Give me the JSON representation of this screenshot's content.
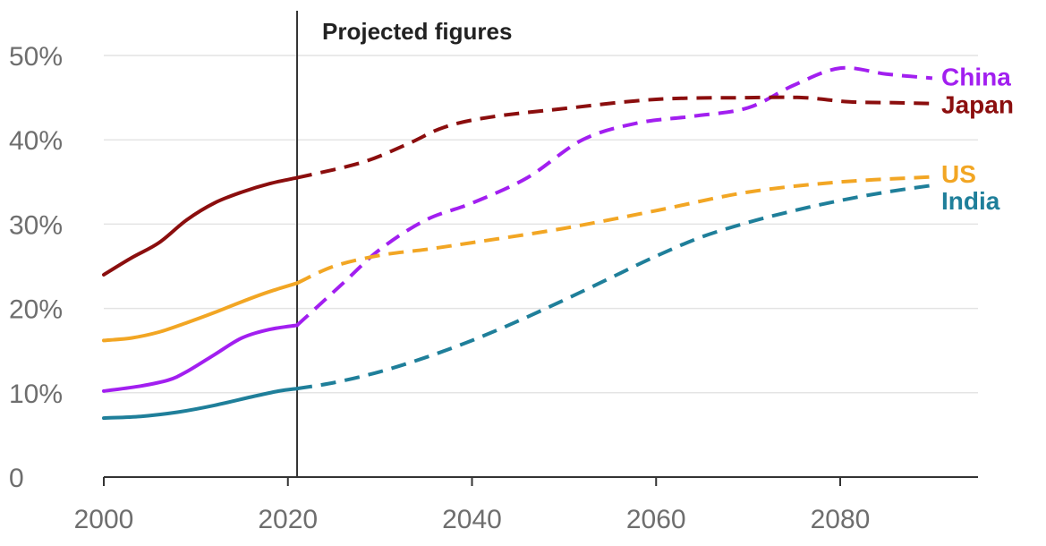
{
  "chart_data": {
    "type": "line",
    "xlim": [
      2000,
      2095
    ],
    "ylim": [
      0,
      50
    ],
    "yticks": [
      {
        "value": 0,
        "label": "0"
      },
      {
        "value": 10,
        "label": "10%"
      },
      {
        "value": 20,
        "label": "20%"
      },
      {
        "value": 30,
        "label": "30%"
      },
      {
        "value": 40,
        "label": "40%"
      },
      {
        "value": 50,
        "label": "50%"
      }
    ],
    "xticks": [
      {
        "value": 2000,
        "label": "2000"
      },
      {
        "value": 2020,
        "label": "2020"
      },
      {
        "value": 2040,
        "label": "2040"
      },
      {
        "value": 2060,
        "label": "2060"
      },
      {
        "value": 2080,
        "label": "2080"
      }
    ],
    "grid": true,
    "projection": {
      "year": 2021,
      "label": "Projected figures"
    },
    "series": [
      {
        "name": "China",
        "color": "#a21ff0",
        "label_y": 47.5,
        "actual": {
          "x": [
            2000,
            2004,
            2007,
            2009,
            2012,
            2015,
            2018,
            2021
          ],
          "y": [
            10.2,
            10.8,
            11.5,
            12.5,
            14.5,
            16.5,
            17.5,
            18.0
          ]
        },
        "projected": {
          "x": [
            2021,
            2026,
            2030,
            2035,
            2040,
            2046,
            2052,
            2058,
            2064,
            2070,
            2075,
            2080,
            2085,
            2090
          ],
          "y": [
            18.0,
            23.0,
            27.0,
            30.5,
            32.5,
            35.5,
            40.0,
            42.0,
            42.8,
            43.8,
            46.5,
            48.5,
            47.8,
            47.3
          ]
        }
      },
      {
        "name": "Japan",
        "color": "#8b0e0e",
        "label_y": 44.2,
        "actual": {
          "x": [
            2000,
            2003,
            2006,
            2009,
            2012,
            2015,
            2018,
            2021
          ],
          "y": [
            24.0,
            26.0,
            27.8,
            30.5,
            32.5,
            33.8,
            34.8,
            35.5
          ]
        },
        "projected": {
          "x": [
            2021,
            2028,
            2033,
            2037,
            2042,
            2050,
            2060,
            2070,
            2076,
            2081,
            2086,
            2090
          ],
          "y": [
            35.5,
            37.3,
            39.5,
            41.5,
            42.7,
            43.7,
            44.8,
            45.0,
            45.0,
            44.5,
            44.4,
            44.3
          ]
        }
      },
      {
        "name": "US",
        "color": "#f2a624",
        "label_y": 36.0,
        "actual": {
          "x": [
            2000,
            2003,
            2006,
            2009,
            2012,
            2015,
            2018,
            2021
          ],
          "y": [
            16.2,
            16.5,
            17.2,
            18.3,
            19.5,
            20.8,
            22.0,
            23.0
          ]
        },
        "projected": {
          "x": [
            2021,
            2025,
            2030,
            2035,
            2040,
            2050,
            2060,
            2070,
            2080,
            2090
          ],
          "y": [
            23.0,
            25.0,
            26.3,
            27.0,
            27.8,
            29.5,
            31.6,
            33.8,
            35.0,
            35.6
          ]
        }
      },
      {
        "name": "India",
        "color": "#1f7f9a",
        "label_y": 32.8,
        "actual": {
          "x": [
            2000,
            2004,
            2008,
            2012,
            2016,
            2019,
            2021
          ],
          "y": [
            7.0,
            7.2,
            7.7,
            8.5,
            9.5,
            10.2,
            10.5
          ]
        },
        "projected": {
          "x": [
            2021,
            2025,
            2030,
            2035,
            2040,
            2045,
            2050,
            2055,
            2060,
            2065,
            2070,
            2075,
            2080,
            2085,
            2090
          ],
          "y": [
            10.5,
            11.2,
            12.5,
            14.2,
            16.2,
            18.5,
            21.0,
            23.6,
            26.2,
            28.5,
            30.2,
            31.6,
            32.8,
            33.8,
            34.6
          ]
        }
      }
    ]
  }
}
